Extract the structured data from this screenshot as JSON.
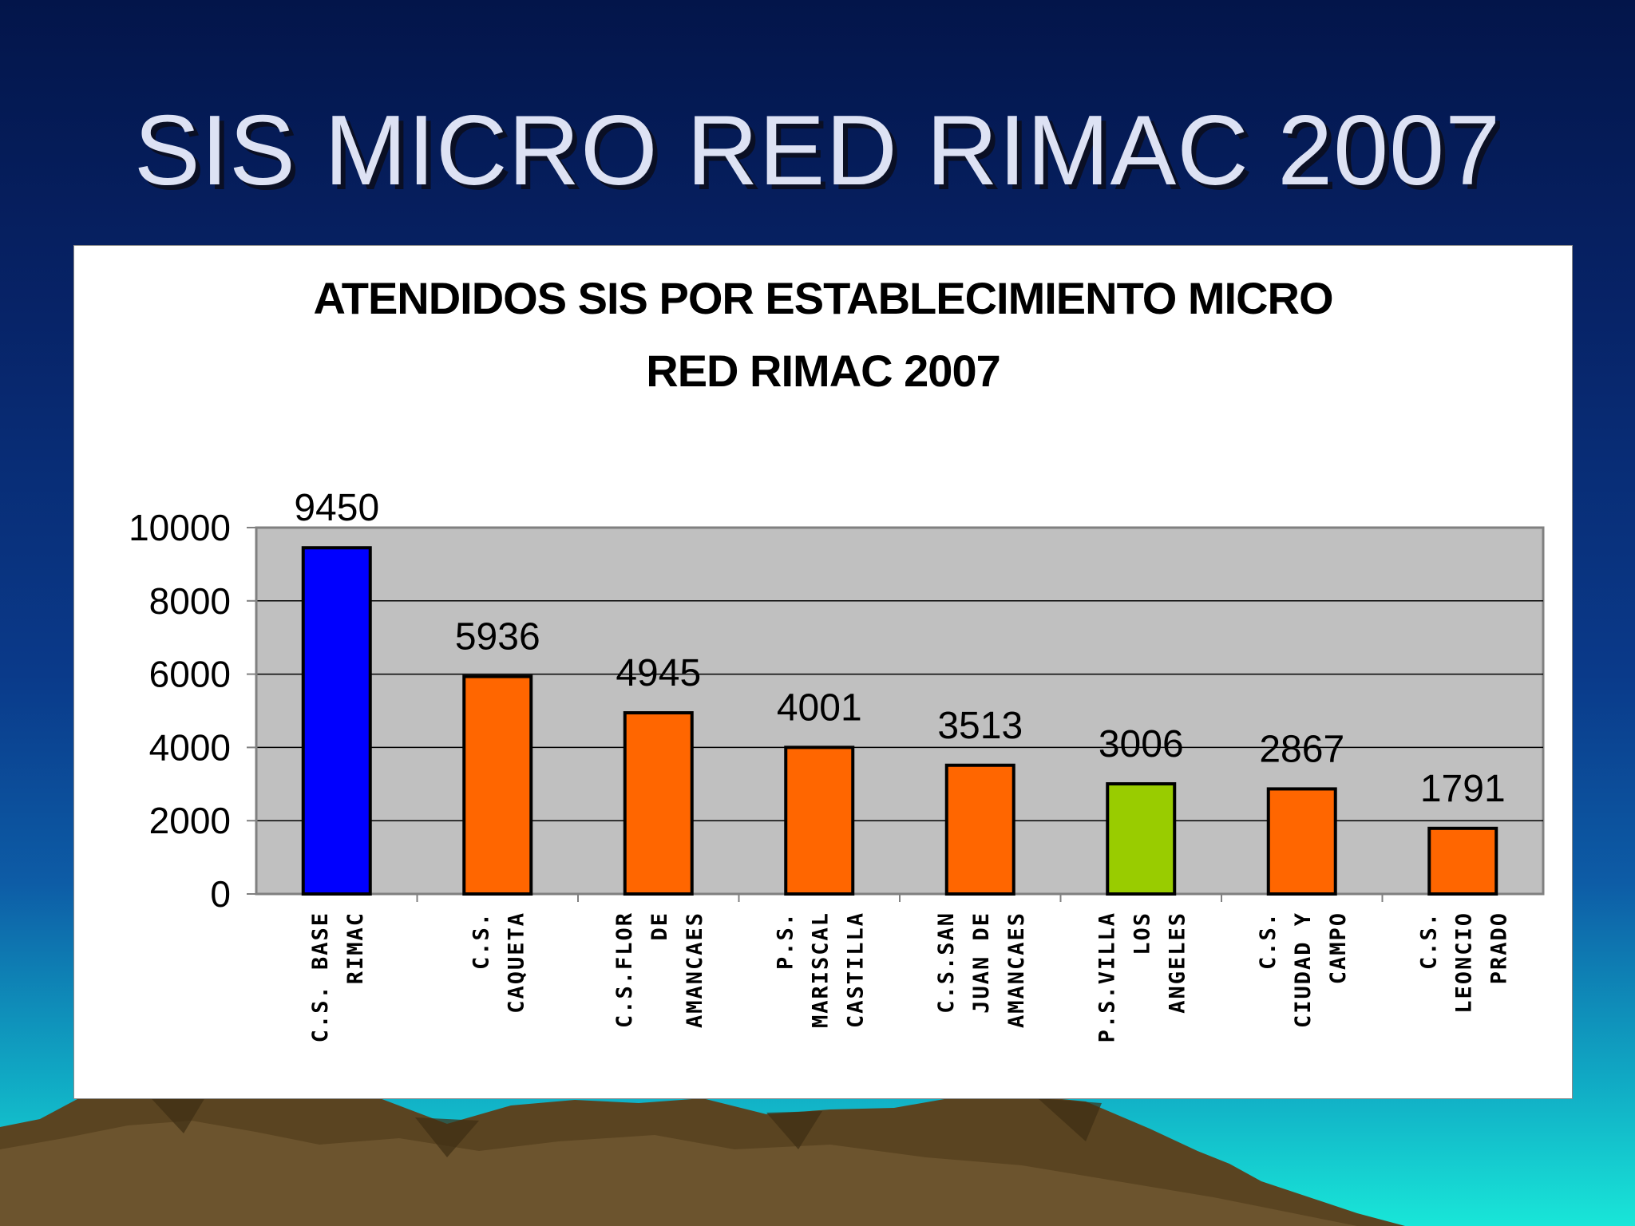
{
  "slide": {
    "title": "SIS MICRO RED RIMAC 2007"
  },
  "colors": {
    "highlight_max": "#0000ff",
    "default_bar": "#ff6600",
    "highlight_alt": "#99cc00",
    "plot_bg": "#c0c0c0"
  },
  "chart_data": {
    "type": "bar",
    "title_lines": [
      "ATENDIDOS SIS POR ESTABLECIMIENTO MICRO",
      "RED RIMAC 2007"
    ],
    "categories": [
      [
        "C.S. BASE",
        "RIMAC"
      ],
      [
        "C.S.",
        "CAQUETA"
      ],
      [
        "C.S.FLOR",
        "DE",
        "AMANCAES"
      ],
      [
        "P.S.",
        "MARISCAL",
        "CASTILLA"
      ],
      [
        "C.S.SAN",
        "JUAN DE",
        "AMANCAES"
      ],
      [
        "P.S.VILLA",
        "LOS",
        "ANGELES"
      ],
      [
        "C.S.",
        "CIUDAD Y",
        "CAMPO"
      ],
      [
        "C.S.",
        "LEONCIO",
        "PRADO"
      ]
    ],
    "values": [
      9450,
      5936,
      4945,
      4001,
      3513,
      3006,
      2867,
      1791
    ],
    "bar_colors": [
      "#0000ff",
      "#ff6600",
      "#ff6600",
      "#ff6600",
      "#ff6600",
      "#99cc00",
      "#ff6600",
      "#ff6600"
    ],
    "ylim": [
      0,
      10000
    ],
    "yticks": [
      0,
      2000,
      4000,
      6000,
      8000,
      10000
    ],
    "grid": true,
    "legend": "none",
    "data_labels": true
  }
}
